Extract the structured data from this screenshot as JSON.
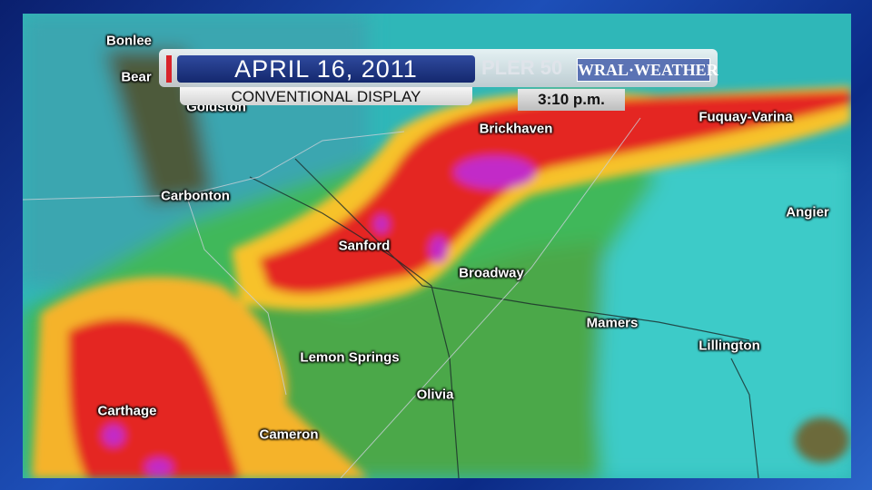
{
  "header": {
    "date": "APRIL 16, 2011",
    "subtitle": "CONVENTIONAL DISPLAY",
    "time": "3:10 p.m.",
    "ghost_text": "PLER 50",
    "logo": "WRAL·WEATHER"
  },
  "colors": {
    "frame": "#1d4fb8",
    "accent_red": "#d8232a",
    "title_bar": "#14286e"
  },
  "cities": [
    {
      "name": "Bonlee"
    },
    {
      "name": "Bear"
    },
    {
      "name": "Goldston"
    },
    {
      "name": "Carbonton"
    },
    {
      "name": "Sanford"
    },
    {
      "name": "Brickhaven"
    },
    {
      "name": "Fuquay-Varina"
    },
    {
      "name": "Angier"
    },
    {
      "name": "Broadway"
    },
    {
      "name": "Mamers"
    },
    {
      "name": "Lillington"
    },
    {
      "name": "Lemon Springs"
    },
    {
      "name": "Olivia"
    },
    {
      "name": "Carthage"
    },
    {
      "name": "Cameron"
    }
  ]
}
